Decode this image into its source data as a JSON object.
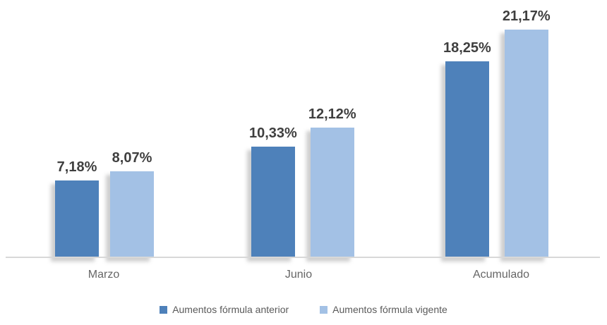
{
  "chart_data": {
    "type": "bar",
    "title": "",
    "xlabel": "",
    "ylabel": "",
    "categories": [
      "Marzo",
      "Junio",
      "Acumulado"
    ],
    "series": [
      {
        "name": "Aumentos fórmula anterior",
        "color": "#4e81ba",
        "values": [
          7.18,
          10.33,
          18.25
        ],
        "labels": [
          "7,18%",
          "10,33%",
          "18,25%"
        ]
      },
      {
        "name": "Aumentos fórmula vigente",
        "color": "#a3c1e5",
        "values": [
          8.07,
          12.12,
          21.17
        ],
        "labels": [
          "8,07%",
          "12,12%",
          "21,17%"
        ]
      }
    ],
    "ylim": [
      0,
      22
    ],
    "grid": false,
    "legend_position": "bottom",
    "axis_line_color": "#d8d8d8",
    "value_label_color": "#3f3f3f",
    "category_label_color": "#666666",
    "background_color": "#ffffff"
  }
}
